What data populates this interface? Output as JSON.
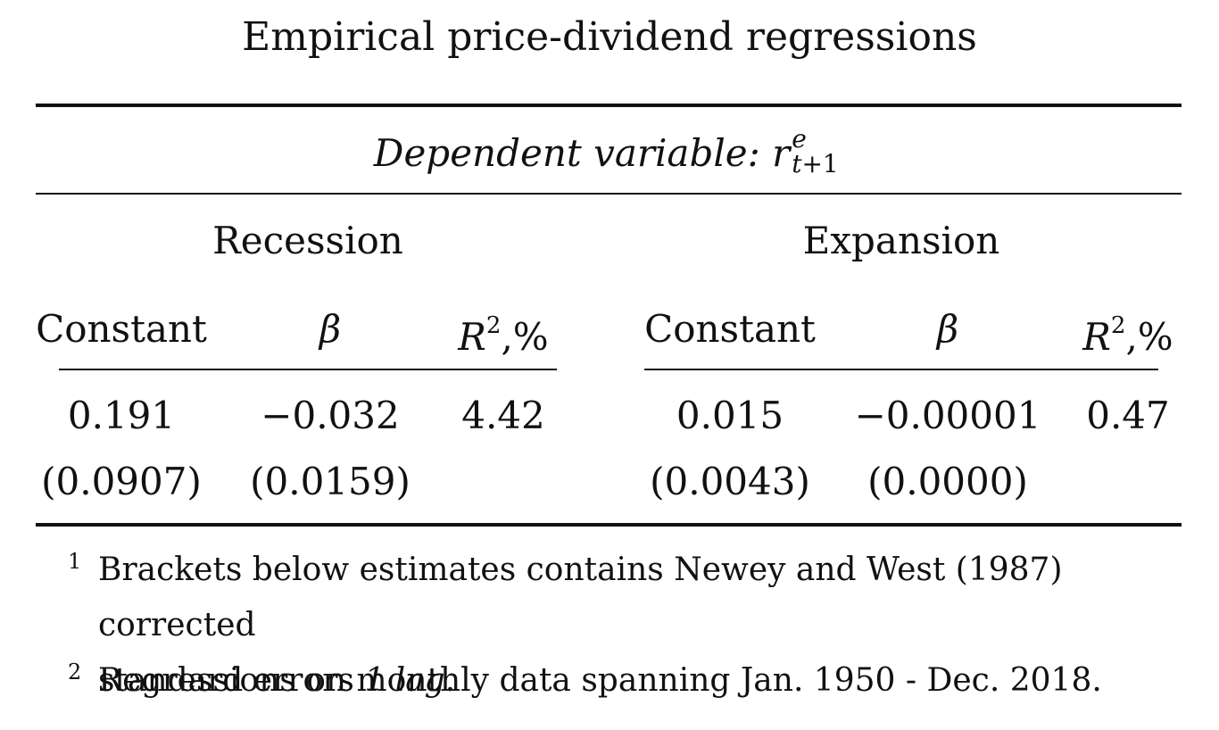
{
  "title": "Empirical price-dividend regressions",
  "dependent": {
    "prefix": "Dependent variable: ",
    "symbol": "r",
    "superscript": "e",
    "subscript_var": "t",
    "subscript_rest": "+1"
  },
  "groups": [
    {
      "label": "Recession"
    },
    {
      "label": "Expansion"
    }
  ],
  "columns": {
    "constant": "Constant",
    "beta": "β",
    "r2_base": "R",
    "r2_exp": "2",
    "r2_suffix": ",%"
  },
  "recession": {
    "constant": "0.191",
    "constant_se": "(0.0907)",
    "beta": "−0.032",
    "beta_se": "(0.0159)",
    "r2": "4.42"
  },
  "expansion": {
    "constant": "0.015",
    "constant_se": "(0.0043)",
    "beta": "−0.00001",
    "beta_se": "(0.0000)",
    "r2": "0.47"
  },
  "notes": [
    {
      "mark": "1",
      "line1": "Brackets below estimates contains Newey and West (1987) corrected",
      "line2_text": "standard errors ",
      "line2_italic": "1 lag",
      "line2_end": "."
    },
    {
      "mark": "2",
      "line1": "Regressions on monthly data spanning Jan. 1950 - Dec. 2018."
    }
  ]
}
